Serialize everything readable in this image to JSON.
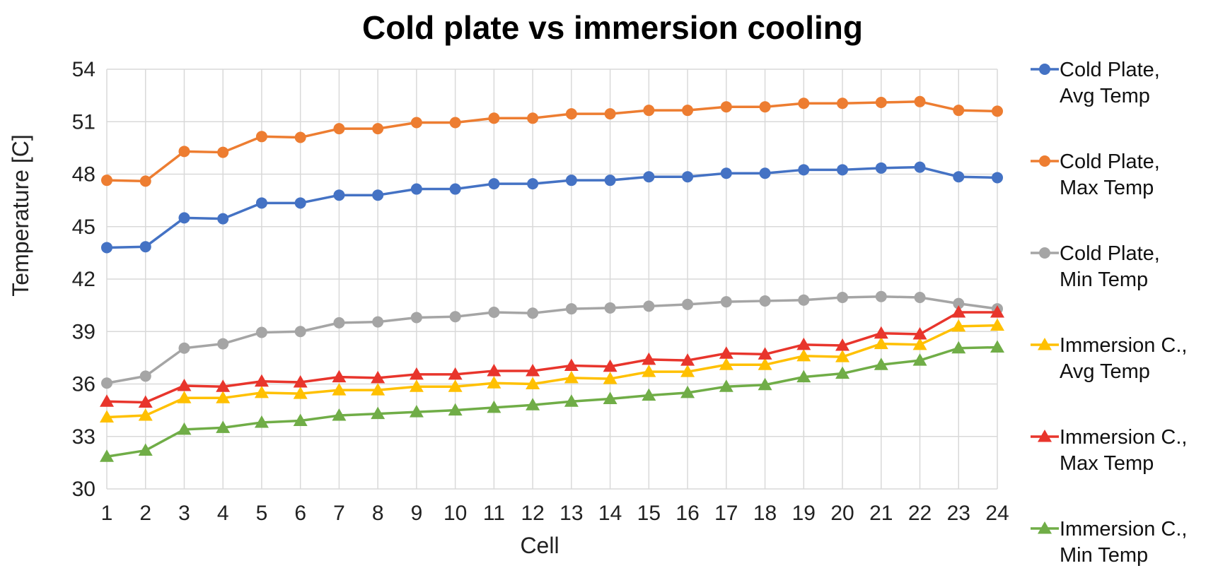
{
  "chart_data": {
    "type": "line",
    "title": "Cold plate vs immersion cooling",
    "xlabel": "Cell",
    "ylabel": "Temperature [C]",
    "ylim": [
      30,
      54
    ],
    "yticks": [
      30,
      33,
      36,
      39,
      42,
      45,
      48,
      51,
      54
    ],
    "grid": true,
    "legend_position": "right",
    "categories": [
      1,
      2,
      3,
      4,
      5,
      6,
      7,
      8,
      9,
      10,
      11,
      12,
      13,
      14,
      15,
      16,
      17,
      18,
      19,
      20,
      21,
      22,
      23,
      24
    ],
    "series": [
      {
        "name_lines": [
          "Cold Plate,",
          "Avg Temp"
        ],
        "color": "#4472C4",
        "marker": "circle",
        "values": [
          43.8,
          43.85,
          45.5,
          45.45,
          46.35,
          46.35,
          46.8,
          46.8,
          47.15,
          47.15,
          47.45,
          47.45,
          47.65,
          47.65,
          47.85,
          47.85,
          48.05,
          48.05,
          48.25,
          48.25,
          48.35,
          48.4,
          47.85,
          47.8
        ]
      },
      {
        "name_lines": [
          "Cold Plate,",
          "Max Temp"
        ],
        "color": "#ED7D31",
        "marker": "circle",
        "values": [
          47.65,
          47.6,
          49.3,
          49.25,
          50.15,
          50.1,
          50.6,
          50.6,
          50.95,
          50.95,
          51.2,
          51.2,
          51.45,
          51.45,
          51.65,
          51.65,
          51.85,
          51.85,
          52.05,
          52.05,
          52.1,
          52.15,
          51.65,
          51.6
        ]
      },
      {
        "name_lines": [
          "Cold Plate,",
          "Min Temp"
        ],
        "color": "#A5A5A5",
        "marker": "circle",
        "values": [
          36.05,
          36.45,
          38.05,
          38.3,
          38.95,
          39.0,
          39.5,
          39.55,
          39.8,
          39.85,
          40.1,
          40.05,
          40.3,
          40.35,
          40.45,
          40.55,
          40.7,
          40.75,
          40.8,
          40.95,
          41.0,
          40.95,
          40.6,
          40.3
        ]
      },
      {
        "name_lines": [
          "Immersion C.,",
          "Avg Temp"
        ],
        "color": "#FFC000",
        "marker": "triangle",
        "values": [
          34.1,
          34.2,
          35.2,
          35.2,
          35.5,
          35.45,
          35.65,
          35.65,
          35.85,
          35.85,
          36.05,
          36.0,
          36.35,
          36.3,
          36.7,
          36.7,
          37.1,
          37.1,
          37.6,
          37.55,
          38.3,
          38.25,
          39.3,
          39.35
        ]
      },
      {
        "name_lines": [
          "Immersion C.,",
          "Max Temp"
        ],
        "color": "#E8352C",
        "marker": "triangle",
        "values": [
          35.0,
          34.95,
          35.9,
          35.85,
          36.15,
          36.1,
          36.4,
          36.35,
          36.55,
          36.55,
          36.75,
          36.75,
          37.05,
          37.0,
          37.4,
          37.35,
          37.75,
          37.7,
          38.25,
          38.2,
          38.9,
          38.85,
          40.1,
          40.1
        ]
      },
      {
        "name_lines": [
          "Immersion C.,",
          "Min Temp"
        ],
        "color": "#70AD47",
        "marker": "triangle",
        "values": [
          31.85,
          32.2,
          33.4,
          33.5,
          33.8,
          33.9,
          34.2,
          34.3,
          34.4,
          34.5,
          34.65,
          34.8,
          35.0,
          35.15,
          35.35,
          35.5,
          35.85,
          35.95,
          36.4,
          36.6,
          37.1,
          37.35,
          38.05,
          38.1
        ]
      }
    ]
  }
}
